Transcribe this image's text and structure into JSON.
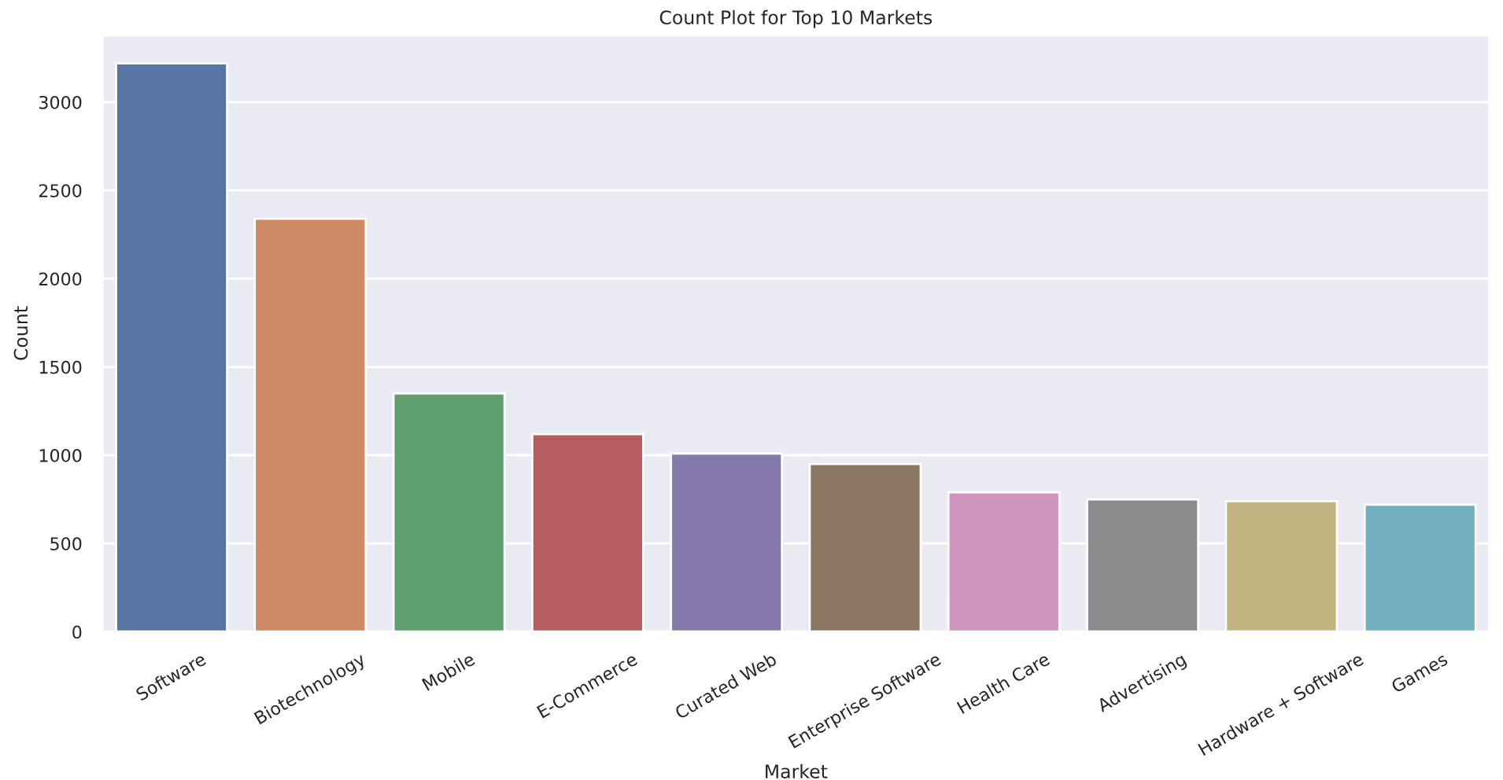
{
  "chart_data": {
    "type": "bar",
    "title": "Count Plot for Top 10 Markets",
    "xlabel": "Market",
    "ylabel": "Count",
    "categories": [
      "Software",
      "Biotechnology",
      "Mobile",
      "E-Commerce",
      "Curated Web",
      "Enterprise Software",
      "Health Care",
      "Advertising",
      "Hardware + Software",
      "Games"
    ],
    "values": [
      3220,
      2340,
      1350,
      1120,
      1010,
      950,
      790,
      750,
      740,
      720
    ],
    "colors": [
      "#5875a4",
      "#cc8963",
      "#5f9e6e",
      "#b55d60",
      "#857aab",
      "#8d7866",
      "#d095bf",
      "#8c8c8c",
      "#c1b37f",
      "#71aec0"
    ],
    "ylim": [
      0,
      3380
    ],
    "yticks": [
      0,
      500,
      1000,
      1500,
      2000,
      2500,
      3000
    ],
    "grid": "y"
  }
}
